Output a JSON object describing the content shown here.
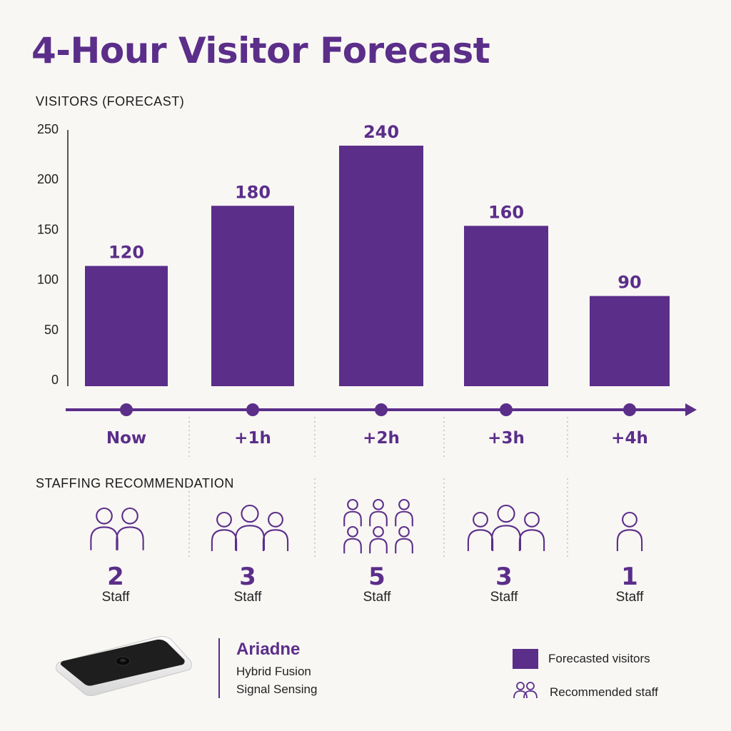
{
  "title": "4-Hour Visitor Forecast",
  "chart_label": "VISITORS (FORECAST)",
  "staffing_label": "STAFFING RECOMMENDATION",
  "staff_unit": "Staff",
  "colors": {
    "accent": "#5b2e8a",
    "background": "#f9f7f4"
  },
  "chart_data": {
    "type": "bar",
    "title": "4-Hour Visitor Forecast",
    "ylabel": "VISITORS (FORECAST)",
    "categories": [
      "Now",
      "+1h",
      "+2h",
      "+3h",
      "+4h"
    ],
    "values": [
      120,
      180,
      240,
      160,
      90
    ],
    "ylim": [
      0,
      250
    ],
    "yticks": [
      0,
      50,
      100,
      150,
      200,
      250
    ],
    "grid": false,
    "series": [
      {
        "name": "Forecasted visitors",
        "values": [
          120,
          180,
          240,
          160,
          90
        ]
      }
    ],
    "staffing": [
      2,
      3,
      5,
      3,
      1
    ]
  },
  "brand": {
    "name": "Ariadne",
    "line1": "Hybrid Fusion",
    "line2": "Signal Sensing",
    "device_icon": "sensor-device-icon"
  },
  "legend": {
    "visitors": "Forecasted visitors",
    "staff": "Recommended staff",
    "staff_icon": "people-icon"
  }
}
